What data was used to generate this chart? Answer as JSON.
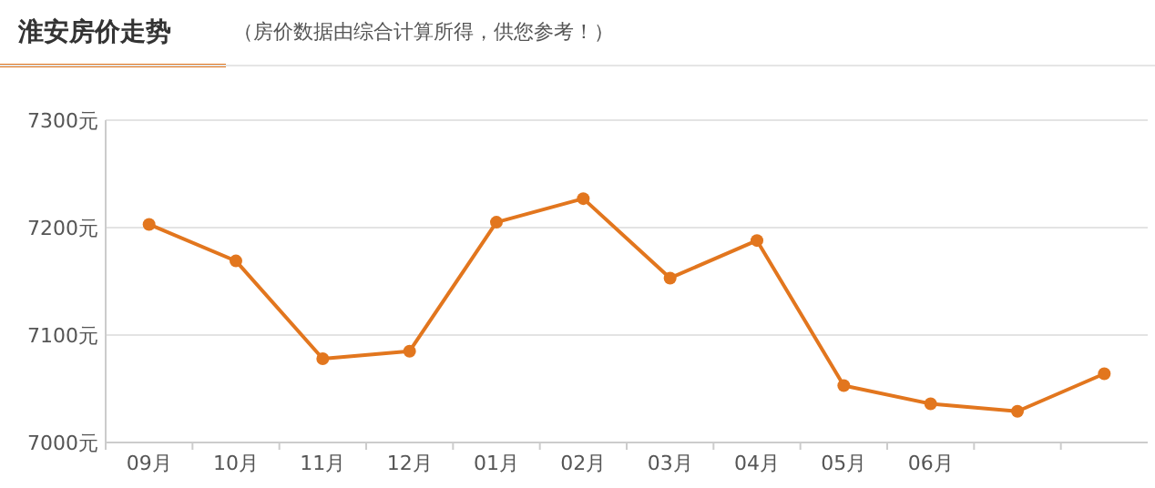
{
  "chart_data": {
    "type": "line",
    "title": "淮安房价走势",
    "subtitle": "（房价数据由综合计算所得，供您参考！）",
    "categories": [
      "09月",
      "10月",
      "11月",
      "12月",
      "01月",
      "02月",
      "03月",
      "04月",
      "05月",
      "06月",
      null,
      null
    ],
    "series": [
      {
        "color": "#e2761e",
        "values": [
          7203,
          7169,
          7078,
          7085,
          7205,
          7227,
          7153,
          7188,
          7053,
          7036,
          7029,
          7064
        ]
      }
    ],
    "ylim": [
      7000,
      7300
    ],
    "yticks": [
      {
        "value": 7000,
        "label": "7000元"
      },
      {
        "value": 7100,
        "label": "7100元"
      },
      {
        "value": 7200,
        "label": "7200元"
      },
      {
        "value": 7300,
        "label": "7300元"
      }
    ],
    "grid": "y",
    "marker": "circle",
    "line_style": "solid"
  }
}
